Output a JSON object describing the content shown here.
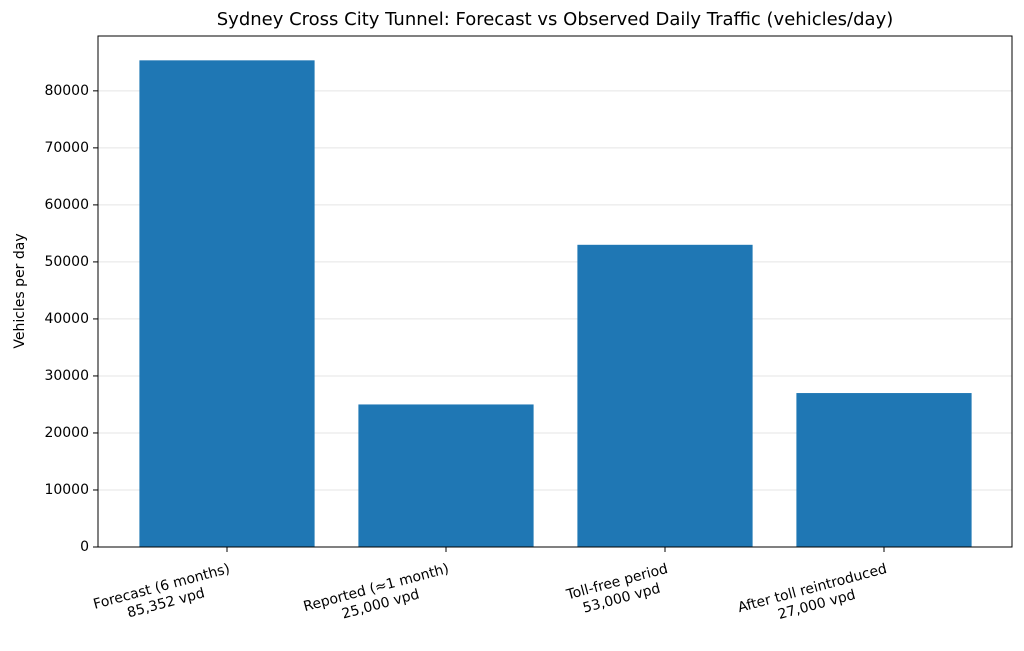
{
  "chart_data": {
    "type": "bar",
    "title": "Sydney Cross City Tunnel: Forecast vs Observed Daily Traffic (vehicles/day)",
    "y_label": "Vehicles per day",
    "categories": [
      "Forecast (6 months)\n85,352 vpd",
      "Reported (≈1 month)\n25,000 vpd",
      "Toll-free period\n53,000 vpd",
      "After toll reintroduced\n27,000 vpd"
    ],
    "values": [
      85352,
      25000,
      53000,
      27000
    ],
    "color": "#1f77b4",
    "ylim": [
      0,
      89620
    ],
    "yticks": [
      0,
      10000,
      20000,
      30000,
      40000,
      50000,
      60000,
      70000,
      80000
    ],
    "grid": true
  }
}
